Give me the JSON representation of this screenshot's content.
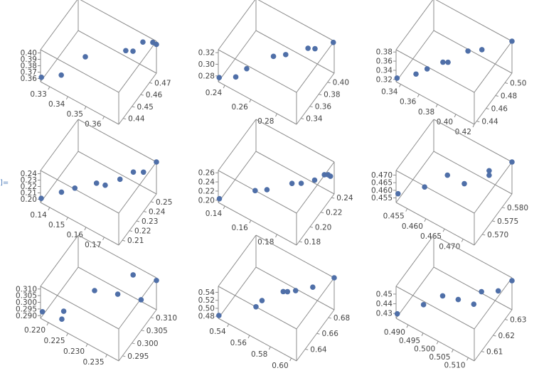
{
  "cell_label": "]=",
  "point_color": "#4f6fa8",
  "chart_data": [
    {
      "type": "scatter3d",
      "x_ticks": [
        "0.33",
        "0.34",
        "0.35",
        "0.36"
      ],
      "x_range": [
        0.325,
        0.368
      ],
      "y_ticks": [
        "0.44",
        "0.45",
        "0.46",
        "0.47"
      ],
      "y_range": [
        0.435,
        0.478
      ],
      "z_ticks": [
        "0.36",
        "0.37",
        "0.38",
        "0.39",
        "0.40"
      ],
      "z_range": [
        0.355,
        0.405
      ],
      "points": [
        [
          0.325,
          0.436,
          0.36
        ],
        [
          0.334,
          0.44,
          0.37
        ],
        [
          0.34,
          0.455,
          0.38
        ],
        [
          0.355,
          0.47,
          0.385
        ],
        [
          0.358,
          0.472,
          0.385
        ],
        [
          0.362,
          0.475,
          0.4
        ],
        [
          0.366,
          0.478,
          0.4
        ],
        [
          0.368,
          0.478,
          0.4
        ]
      ]
    },
    {
      "type": "scatter3d",
      "x_ticks": [
        "0.24",
        "0.26",
        "0.28"
      ],
      "x_range": [
        0.235,
        0.295
      ],
      "y_ticks": [
        "0.34",
        "0.36",
        "0.38",
        "0.40"
      ],
      "y_range": [
        0.33,
        0.415
      ],
      "z_ticks": [
        "0.28",
        "0.30",
        "0.32"
      ],
      "z_range": [
        0.27,
        0.325
      ],
      "points": [
        [
          0.235,
          0.332,
          0.275
        ],
        [
          0.245,
          0.34,
          0.28
        ],
        [
          0.25,
          0.35,
          0.29
        ],
        [
          0.262,
          0.375,
          0.3
        ],
        [
          0.268,
          0.385,
          0.3
        ],
        [
          0.28,
          0.4,
          0.31
        ],
        [
          0.284,
          0.404,
          0.31
        ],
        [
          0.295,
          0.413,
          0.325
        ]
      ]
    },
    {
      "type": "scatter3d",
      "x_ticks": [
        "0.34",
        "0.36",
        "0.38",
        "0.40",
        "0.42"
      ],
      "x_range": [
        0.335,
        0.42
      ],
      "y_ticks": [
        "0.44",
        "0.46",
        "0.48",
        "0.50"
      ],
      "y_range": [
        0.435,
        0.515
      ],
      "z_ticks": [
        "0.32",
        "0.34",
        "0.36",
        "0.38"
      ],
      "z_range": [
        0.315,
        0.385
      ],
      "points": [
        [
          0.335,
          0.437,
          0.32
        ],
        [
          0.35,
          0.448,
          0.33
        ],
        [
          0.357,
          0.458,
          0.335
        ],
        [
          0.368,
          0.47,
          0.345
        ],
        [
          0.372,
          0.473,
          0.345
        ],
        [
          0.385,
          0.49,
          0.36
        ],
        [
          0.395,
          0.5,
          0.36
        ],
        [
          0.42,
          0.515,
          0.385
        ]
      ]
    },
    {
      "type": "scatter3d",
      "x_ticks": [
        "0.14",
        "0.15",
        "0.16",
        "0.17"
      ],
      "x_range": [
        0.135,
        0.178
      ],
      "y_ticks": [
        "0.21",
        "0.22",
        "0.23",
        "0.24",
        "0.25"
      ],
      "y_range": [
        0.205,
        0.258
      ],
      "z_ticks": [
        "0.20",
        "0.21",
        "0.22",
        "0.23",
        "0.24"
      ],
      "z_range": [
        0.195,
        0.245
      ],
      "points": [
        [
          0.135,
          0.206,
          0.2
        ],
        [
          0.143,
          0.214,
          0.21
        ],
        [
          0.148,
          0.22,
          0.215
        ],
        [
          0.156,
          0.23,
          0.22
        ],
        [
          0.16,
          0.232,
          0.22
        ],
        [
          0.165,
          0.24,
          0.225
        ],
        [
          0.17,
          0.246,
          0.235
        ],
        [
          0.174,
          0.25,
          0.235
        ],
        [
          0.178,
          0.258,
          0.245
        ]
      ]
    },
    {
      "type": "scatter3d",
      "x_ticks": [
        "0.14",
        "0.16",
        "0.18"
      ],
      "x_range": [
        0.135,
        0.195
      ],
      "y_ticks": [
        "0.18",
        "0.20",
        "0.22",
        "0.24"
      ],
      "y_range": [
        0.175,
        0.245
      ],
      "z_ticks": [
        "0.20",
        "0.22",
        "0.24",
        "0.26"
      ],
      "z_range": [
        0.195,
        0.265
      ],
      "points": [
        [
          0.135,
          0.177,
          0.2
        ],
        [
          0.155,
          0.195,
          0.22
        ],
        [
          0.162,
          0.2,
          0.225
        ],
        [
          0.175,
          0.215,
          0.235
        ],
        [
          0.18,
          0.22,
          0.235
        ],
        [
          0.187,
          0.228,
          0.24
        ],
        [
          0.192,
          0.234,
          0.25
        ],
        [
          0.194,
          0.236,
          0.25
        ],
        [
          0.195,
          0.238,
          0.245
        ]
      ]
    },
    {
      "type": "scatter3d",
      "x_ticks": [
        "0.455",
        "0.460",
        "0.465",
        "0.470"
      ],
      "x_range": [
        0.452,
        0.473
      ],
      "y_ticks": [
        "0.570",
        "0.575",
        "0.580"
      ],
      "y_range": [
        0.566,
        0.585
      ],
      "z_ticks": [
        "0.455",
        "0.460",
        "0.465",
        "0.470"
      ],
      "z_range": [
        0.452,
        0.473
      ],
      "points": [
        [
          0.452,
          0.567,
          0.456
        ],
        [
          0.457,
          0.571,
          0.46
        ],
        [
          0.461,
          0.575,
          0.466
        ],
        [
          0.465,
          0.576,
          0.464
        ],
        [
          0.469,
          0.581,
          0.466
        ],
        [
          0.469,
          0.581,
          0.469
        ],
        [
          0.473,
          0.585,
          0.473
        ]
      ]
    },
    {
      "type": "scatter3d",
      "x_ticks": [
        "0.220",
        "0.225",
        "0.230",
        "0.235"
      ],
      "x_range": [
        0.218,
        0.238
      ],
      "y_ticks": [
        "0.295",
        "0.300",
        "0.305",
        "0.310"
      ],
      "y_range": [
        0.293,
        0.313
      ],
      "z_ticks": [
        "0.290",
        "0.295",
        "0.300",
        "0.305",
        "0.310"
      ],
      "z_range": [
        0.288,
        0.312
      ],
      "points": [
        [
          0.218,
          0.294,
          0.291
        ],
        [
          0.222,
          0.296,
          0.288
        ],
        [
          0.222,
          0.297,
          0.292
        ],
        [
          0.227,
          0.303,
          0.304
        ],
        [
          0.231,
          0.307,
          0.3
        ],
        [
          0.233,
          0.311,
          0.31
        ],
        [
          0.236,
          0.309,
          0.3
        ],
        [
          0.238,
          0.313,
          0.31
        ]
      ]
    },
    {
      "type": "scatter3d",
      "x_ticks": [
        "0.54",
        "0.56",
        "0.58",
        "0.60"
      ],
      "x_range": [
        0.53,
        0.605
      ],
      "y_ticks": [
        "0.64",
        "0.66",
        "0.68"
      ],
      "y_range": [
        0.625,
        0.69
      ],
      "z_ticks": [
        "0.48",
        "0.50",
        "0.52",
        "0.54"
      ],
      "z_range": [
        0.475,
        0.555
      ],
      "points": [
        [
          0.53,
          0.626,
          0.48
        ],
        [
          0.555,
          0.645,
          0.5
        ],
        [
          0.558,
          0.65,
          0.51
        ],
        [
          0.57,
          0.665,
          0.52
        ],
        [
          0.573,
          0.667,
          0.52
        ],
        [
          0.578,
          0.672,
          0.52
        ],
        [
          0.59,
          0.68,
          0.53
        ],
        [
          0.605,
          0.69,
          0.555
        ]
      ]
    },
    {
      "type": "scatter3d",
      "x_ticks": [
        "0.490",
        "0.495",
        "0.500",
        "0.505",
        "0.510"
      ],
      "x_range": [
        0.486,
        0.512
      ],
      "y_ticks": [
        "0.61",
        "0.62",
        "0.63"
      ],
      "y_range": [
        0.604,
        0.636
      ],
      "z_ticks": [
        "0.43",
        "0.44",
        "0.45"
      ],
      "z_range": [
        0.425,
        0.458
      ],
      "points": [
        [
          0.486,
          0.605,
          0.428
        ],
        [
          0.492,
          0.612,
          0.436
        ],
        [
          0.496,
          0.618,
          0.442
        ],
        [
          0.5,
          0.621,
          0.44
        ],
        [
          0.504,
          0.624,
          0.437
        ],
        [
          0.505,
          0.628,
          0.445
        ],
        [
          0.509,
          0.632,
          0.446
        ],
        [
          0.512,
          0.636,
          0.455
        ]
      ]
    }
  ]
}
